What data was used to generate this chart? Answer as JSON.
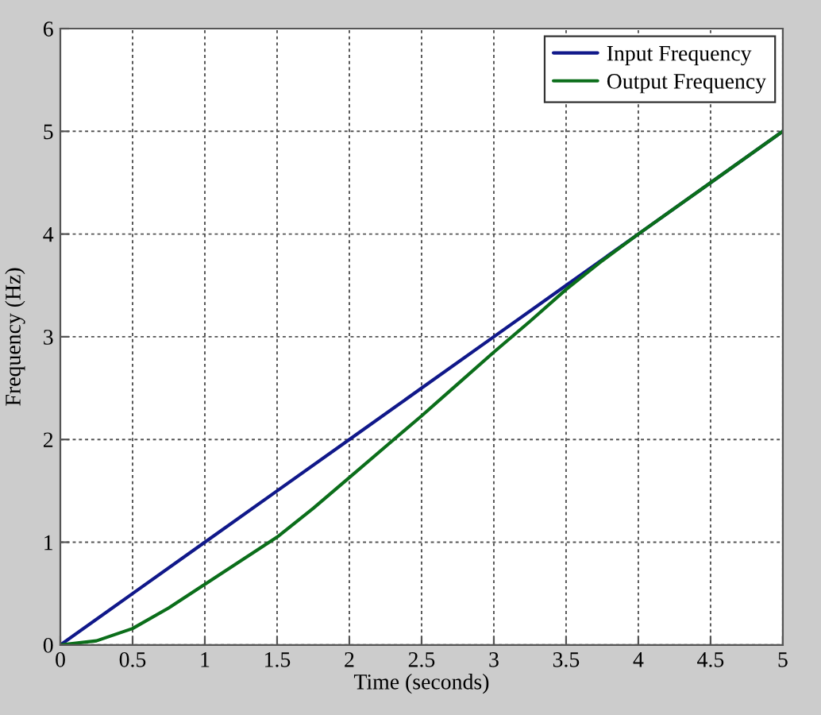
{
  "chart_data": {
    "type": "line",
    "xlabel": "Time (seconds)",
    "ylabel": "Frequency (Hz)",
    "xlim": [
      0,
      5
    ],
    "ylim": [
      0,
      6
    ],
    "xticks": [
      0,
      0.5,
      1,
      1.5,
      2,
      2.5,
      3,
      3.5,
      4,
      4.5,
      5
    ],
    "yticks": [
      0,
      1,
      2,
      3,
      4,
      5,
      6
    ],
    "grid": true,
    "legend": "top right",
    "line_style": "solid",
    "series": [
      {
        "name": "Input Frequency",
        "color": "#10188a",
        "x": [
          0,
          0.5,
          1,
          1.5,
          2,
          2.5,
          3,
          3.5,
          4,
          4.5,
          5
        ],
        "values": [
          0,
          0.5,
          1,
          1.5,
          2,
          2.5,
          3,
          3.5,
          4,
          4.5,
          5
        ]
      },
      {
        "name": "Output Frequency",
        "color": "#0b6e1a",
        "x": [
          0,
          0.25,
          0.5,
          0.75,
          1,
          1.25,
          1.5,
          1.75,
          2,
          2.25,
          2.5,
          2.75,
          3,
          3.25,
          3.5,
          3.75,
          4,
          4.5,
          5
        ],
        "values": [
          0,
          0.04,
          0.16,
          0.36,
          0.59,
          0.82,
          1.05,
          1.33,
          1.63,
          1.93,
          2.23,
          2.54,
          2.85,
          3.15,
          3.46,
          3.74,
          4,
          4.5,
          5
        ]
      }
    ]
  }
}
